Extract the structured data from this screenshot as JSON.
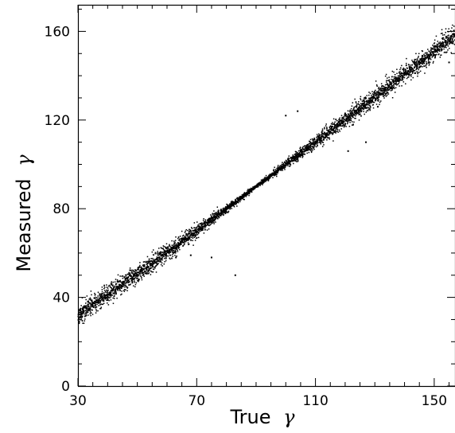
{
  "chart_data": {
    "type": "scatter",
    "title": "",
    "xlabel": "True",
    "ylabel": "Measured",
    "axis_symbol": "γ",
    "xlim": [
      30,
      157
    ],
    "ylim": [
      0,
      172
    ],
    "x_ticks": [
      30,
      70,
      110,
      150
    ],
    "y_ticks": [
      0,
      40,
      80,
      120,
      160
    ],
    "grid": false,
    "legend": "none",
    "point_color": "#000000",
    "series": [
      {
        "band_center": [
          [
            30,
            32
          ],
          [
            60,
            60
          ],
          [
            90,
            90
          ],
          [
            120,
            120
          ],
          [
            157,
            158
          ]
        ],
        "spread": [
          [
            30,
            5
          ],
          [
            60,
            4
          ],
          [
            85,
            1.5
          ],
          [
            90,
            0.7
          ],
          [
            95,
            1.5
          ],
          [
            120,
            4
          ],
          [
            157,
            5
          ]
        ],
        "outliers": [
          [
            63,
            58
          ],
          [
            68,
            59
          ],
          [
            75,
            58
          ],
          [
            83,
            50
          ],
          [
            100,
            122
          ],
          [
            104,
            124
          ],
          [
            121,
            106
          ],
          [
            127,
            110
          ],
          [
            120,
            123
          ],
          [
            131,
            126
          ],
          [
            146,
            149
          ],
          [
            155,
            146
          ]
        ]
      }
    ]
  }
}
